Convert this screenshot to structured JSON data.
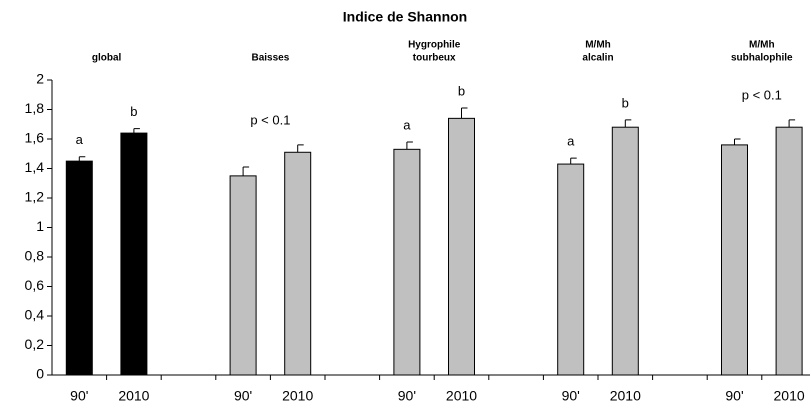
{
  "chart_data": {
    "type": "grouped-bar-error",
    "title": "Indice de Shannon",
    "ylim": [
      0,
      2
    ],
    "yticks": [
      0,
      {
        "value": 0.2,
        "label": "0,2"
      },
      {
        "value": 0.4,
        "label": "0,4"
      },
      {
        "value": 0.6,
        "label": "0,6"
      },
      {
        "value": 0.8,
        "label": "0,8"
      },
      1,
      {
        "value": 1.2,
        "label": "1,2"
      },
      {
        "value": 1.4,
        "label": "1,4"
      },
      {
        "value": 1.6,
        "label": "1,6"
      },
      {
        "value": 1.8,
        "label": "1,8"
      },
      2
    ],
    "groups": [
      {
        "label": [
          "global"
        ],
        "color": "#000000",
        "categories": [
          "90'",
          "2010"
        ],
        "values": [
          1.45,
          1.64
        ],
        "errors": [
          0.03,
          0.03
        ],
        "annotations": [
          "a",
          "b"
        ]
      },
      {
        "label": [
          "Baisses"
        ],
        "color": "#c0c0c0",
        "categories": [
          "90'",
          "2010"
        ],
        "values": [
          1.35,
          1.51
        ],
        "errors": [
          0.06,
          0.05
        ],
        "note": "p < 0.1"
      },
      {
        "label": [
          "Hygrophile",
          "tourbeux"
        ],
        "color": "#c0c0c0",
        "categories": [
          "90'",
          "2010"
        ],
        "values": [
          1.53,
          1.74
        ],
        "errors": [
          0.05,
          0.07
        ],
        "annotations": [
          "a",
          "b"
        ]
      },
      {
        "label": [
          "M/Mh",
          "alcalin"
        ],
        "color": "#c0c0c0",
        "categories": [
          "90'",
          "2010"
        ],
        "values": [
          1.43,
          1.68
        ],
        "errors": [
          0.04,
          0.05
        ],
        "annotations": [
          "a",
          "b"
        ]
      },
      {
        "label": [
          "M/Mh",
          "subhalophile"
        ],
        "color": "#c0c0c0",
        "categories": [
          "90'",
          "2010"
        ],
        "values": [
          1.56,
          1.68
        ],
        "errors": [
          0.04,
          0.05
        ],
        "note": "p < 0.1"
      }
    ]
  }
}
